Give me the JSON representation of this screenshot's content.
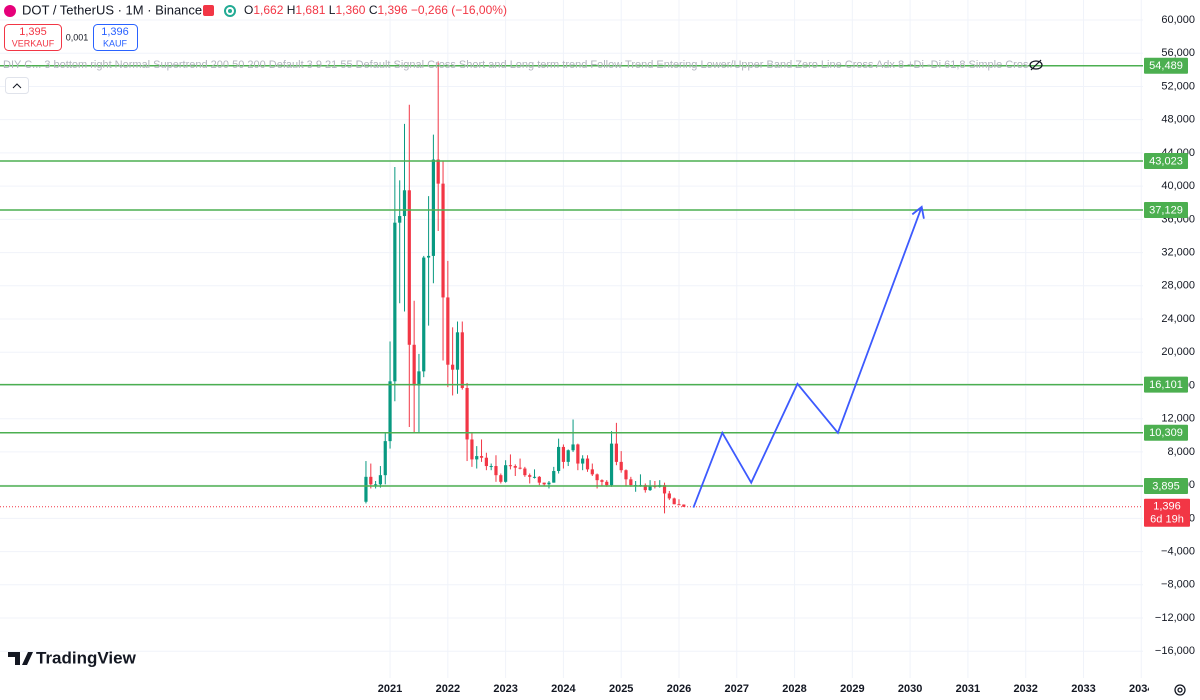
{
  "chart_data": {
    "type": "candlestick",
    "title": "DOT / TetherUS · 1M · Binance",
    "ohlc_letters": [
      "O",
      "H",
      "L",
      "C"
    ],
    "ohlc_texts": [
      "1,662",
      "1,681",
      "1,360",
      "1,396"
    ],
    "change_text": "−0,266 (−16,00%)",
    "x": [
      2020.583,
      2020.667,
      2020.75,
      2020.833,
      2020.917,
      2021,
      2021.083,
      2021.167,
      2021.25,
      2021.333,
      2021.417,
      2021.5,
      2021.583,
      2021.667,
      2021.75,
      2021.833,
      2021.917,
      2022,
      2022.083,
      2022.167,
      2022.25,
      2022.333,
      2022.417,
      2022.5,
      2022.583,
      2022.667,
      2022.75,
      2022.833,
      2022.917,
      2023,
      2023.083,
      2023.167,
      2023.25,
      2023.333,
      2023.417,
      2023.5,
      2023.583,
      2023.667,
      2023.75,
      2023.833,
      2023.917,
      2024,
      2024.083,
      2024.167,
      2024.25,
      2024.333,
      2024.417,
      2024.5,
      2024.583,
      2024.667,
      2024.75,
      2024.833,
      2024.917,
      2025,
      2025.083,
      2025.167,
      2025.25,
      2025.333,
      2025.417,
      2025.5,
      2025.583,
      2025.667,
      2025.75,
      2025.833,
      2025.917,
      2026,
      2026.083
    ],
    "open": [
      2.0,
      5.0,
      4.1,
      4.1,
      5.2,
      9.3,
      16.5,
      35.6,
      36.4,
      39.5,
      20.9,
      16.0,
      17.7,
      31.4,
      31.6,
      43.2,
      40.3,
      26.6,
      18.5,
      17.9,
      22.4,
      15.7,
      9.5,
      7.1,
      7.5,
      7.3,
      6.3,
      6.3,
      5.2,
      4.4,
      6.4,
      6.3,
      6.1,
      6.0,
      5.2,
      5.0,
      5.0,
      4.3,
      4.1,
      4.3,
      5.7,
      8.6,
      6.8,
      8.2,
      8.9,
      6.6,
      7.2,
      5.9,
      5.3,
      4.6,
      4.4,
      4.0,
      9.0,
      6.8,
      5.8,
      4.7,
      4.0,
      4.0,
      4.0,
      3.4,
      3.9,
      3.8,
      4.0,
      3.0,
      2.4,
      1.7,
      1.662
    ],
    "high": [
      6.9,
      6.6,
      4.5,
      6.3,
      10.4,
      21.3,
      42.3,
      40.7,
      47.5,
      49.8,
      26.2,
      19.8,
      31.6,
      38.8,
      46.2,
      55.0,
      43.0,
      31.0,
      23.0,
      23.7,
      23.7,
      16.3,
      10.4,
      8.7,
      9.5,
      7.9,
      6.6,
      7.6,
      5.4,
      7.0,
      7.7,
      6.5,
      7.2,
      6.2,
      5.4,
      5.9,
      5.1,
      4.3,
      4.5,
      6.2,
      9.6,
      8.9,
      8.3,
      11.9,
      9.0,
      7.6,
      7.6,
      6.6,
      5.4,
      4.7,
      4.6,
      10.5,
      11.5,
      8.1,
      5.9,
      5.0,
      4.5,
      5.3,
      4.2,
      4.6,
      4.5,
      4.6,
      4.3,
      3.3,
      2.5,
      2.3,
      1.681
    ],
    "low": [
      1.8,
      3.6,
      3.6,
      3.7,
      4.1,
      8.4,
      14.1,
      25.9,
      24.9,
      11.0,
      10.4,
      10.4,
      17.0,
      23.2,
      28.3,
      34.6,
      19.0,
      15.8,
      14.8,
      15.0,
      15.5,
      6.9,
      6.2,
      6.0,
      6.8,
      5.8,
      5.8,
      4.4,
      4.2,
      4.3,
      5.9,
      5.1,
      5.9,
      5.0,
      4.2,
      4.8,
      4.0,
      3.9,
      3.6,
      4.3,
      5.4,
      6.0,
      6.3,
      8.0,
      5.8,
      5.8,
      5.6,
      5.1,
      3.6,
      3.9,
      3.8,
      3.8,
      6.4,
      5.5,
      3.9,
      3.8,
      3.2,
      3.8,
      3.1,
      3.3,
      3.6,
      3.7,
      0.6,
      2.2,
      1.7,
      1.6,
      1.36
    ],
    "close": [
      5.0,
      4.1,
      4.1,
      5.2,
      9.3,
      16.5,
      35.6,
      36.4,
      39.5,
      20.9,
      16.0,
      17.7,
      31.4,
      31.6,
      43.2,
      40.3,
      26.6,
      18.5,
      17.9,
      22.4,
      15.7,
      9.5,
      7.1,
      7.5,
      7.3,
      6.3,
      6.3,
      5.2,
      4.4,
      6.4,
      6.3,
      6.1,
      6.0,
      5.2,
      5.0,
      5.0,
      4.3,
      4.1,
      4.3,
      5.7,
      8.6,
      6.8,
      8.2,
      8.9,
      6.6,
      7.2,
      5.9,
      5.3,
      4.6,
      4.4,
      4.0,
      9.0,
      6.8,
      5.8,
      4.7,
      4.0,
      4.0,
      4.0,
      3.4,
      3.9,
      3.8,
      4.0,
      3.0,
      2.4,
      1.7,
      1.662,
      1.396
    ],
    "up_color": "#089981",
    "down_color": "#f23645",
    "projection": {
      "color": "#3d5afe",
      "x": [
        2026.25,
        2026.75,
        2027.25,
        2028.05,
        2028.75,
        2030.2
      ],
      "values": [
        1.3,
        10.3,
        4.3,
        16.2,
        10.3,
        37.5
      ]
    },
    "levels": [
      {
        "value": 54.489,
        "label": "54,489"
      },
      {
        "value": 43.023,
        "label": "43,023"
      },
      {
        "value": 37.129,
        "label": "37,129"
      },
      {
        "value": 16.101,
        "label": "16,101"
      },
      {
        "value": 10.309,
        "label": "10,309"
      },
      {
        "value": 3.895,
        "label": "3,895"
      }
    ],
    "level_color": "#4caf50",
    "last_price": {
      "value": 1.396,
      "label": "1,396",
      "countdown": "6d 19h"
    },
    "xlim": [
      2014.25,
      2034.03
    ],
    "xticks": [
      2021,
      2022,
      2023,
      2024,
      2025,
      2026,
      2027,
      2028,
      2029,
      2030,
      2031,
      2032,
      2033,
      2034
    ],
    "ylim": [
      -19.22,
      62.41
    ],
    "yticks": [
      {
        "value": 60,
        "label": "60,000"
      },
      {
        "value": 56,
        "label": "56,000"
      },
      {
        "value": 52,
        "label": "52,000"
      },
      {
        "value": 48,
        "label": "48,000"
      },
      {
        "value": 44,
        "label": "44,000"
      },
      {
        "value": 40,
        "label": "40,000"
      },
      {
        "value": 36,
        "label": "36,000"
      },
      {
        "value": 32,
        "label": "32,000"
      },
      {
        "value": 28,
        "label": "28,000"
      },
      {
        "value": 24,
        "label": "24,000"
      },
      {
        "value": 20,
        "label": "20,000"
      },
      {
        "value": 16,
        "label": "16,000"
      },
      {
        "value": 12,
        "label": "12,000"
      },
      {
        "value": 8,
        "label": "8,000"
      },
      {
        "value": 4,
        "label": "4,000"
      },
      {
        "value": 0,
        "label": "0,000"
      },
      {
        "value": -4,
        "label": "−4,000"
      },
      {
        "value": -8,
        "label": "−8,000"
      },
      {
        "value": -12,
        "label": "−12,000"
      },
      {
        "value": -16,
        "label": "−16,000"
      }
    ],
    "grid": true
  },
  "toolbar": {
    "sell_price": "1,395",
    "sell_label": "VERKAUF",
    "spread": "0,001",
    "buy_price": "1,396",
    "buy_label": "KAUF"
  },
  "indicator": "DIY C... 3 bottom right Normal Supertrend 200 50 200 Default 3 9 21 55 Default Signal Cross Short and Long term trend Follow Trend Entering Lower/Upper Band Zero Line Cross Adx 8 +Di -Di 61,8 Simple CrossOver R",
  "logo": "TradingView"
}
